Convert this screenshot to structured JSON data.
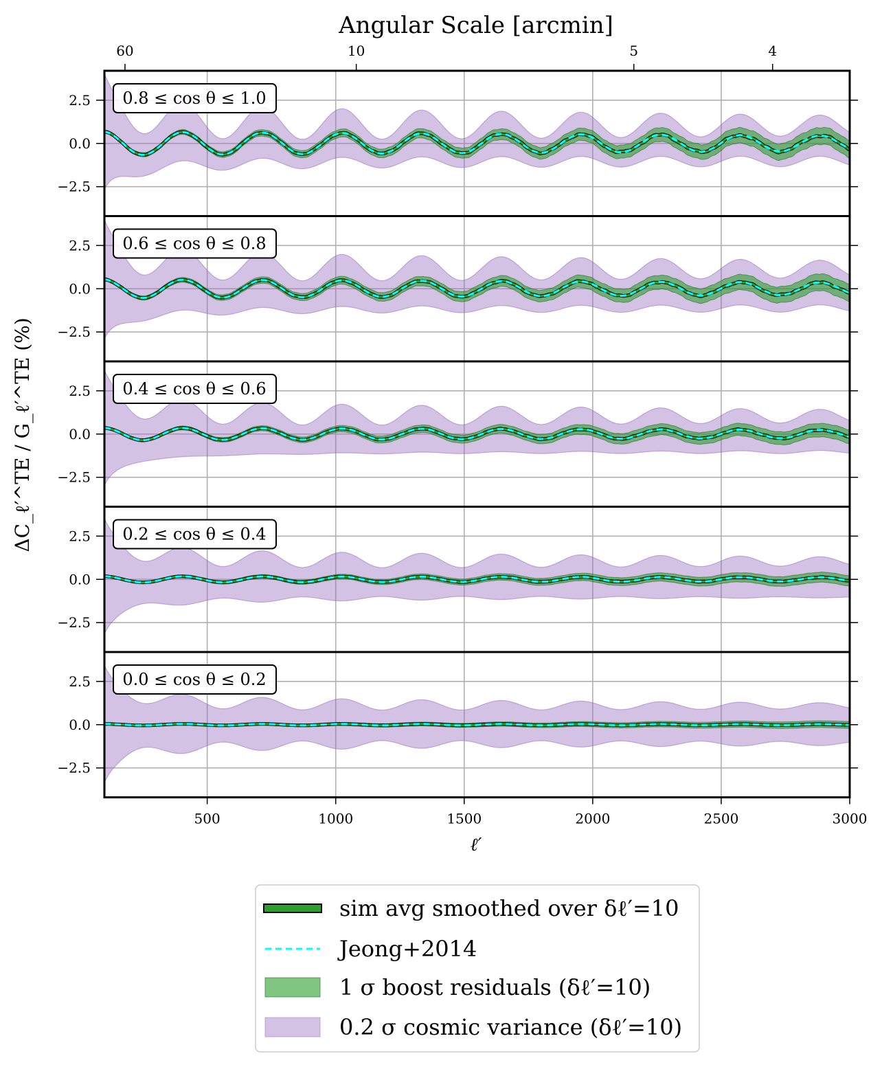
{
  "chart_data": {
    "type": "line",
    "top_axis_title": "Angular Scale [arcmin]",
    "top_ticks": [
      {
        "label": "60",
        "ell": 180
      },
      {
        "label": "10",
        "ell": 1080
      },
      {
        "label": "5",
        "ell": 2160
      },
      {
        "label": "4",
        "ell": 2700
      }
    ],
    "xlabel": "ℓ′",
    "ylabel": "ΔC_ℓ′^TE / G_ℓ′^TE (%)",
    "xlim": [
      100,
      3000
    ],
    "ylim": [
      -4.2,
      4.2
    ],
    "x_ticks": [
      500,
      1000,
      1500,
      2000,
      2500,
      3000
    ],
    "y_ticks": [
      -2.5,
      0.0,
      2.5
    ],
    "y_tick_labels": [
      "−2.5",
      "0.0",
      "2.5"
    ],
    "oscillation_period": 310,
    "panels": [
      {
        "label": "0.8 ≤ cos θ ≤ 1.0",
        "signal_amp": 0.75,
        "sigma_boost": 0.25,
        "cv_band_end": 1.0
      },
      {
        "label": "0.6 ≤ cos θ ≤ 0.8",
        "signal_amp": 0.6,
        "sigma_boost": 0.25,
        "cv_band_end": 1.1
      },
      {
        "label": "0.4 ≤ cos θ ≤ 0.6",
        "signal_amp": 0.4,
        "sigma_boost": 0.2,
        "cv_band_end": 1.0
      },
      {
        "label": "0.2 ≤ cos θ ≤ 0.4",
        "signal_amp": 0.2,
        "sigma_boost": 0.15,
        "cv_band_end": 1.0
      },
      {
        "label": "0.0 ≤ cos θ ≤ 0.2",
        "signal_amp": 0.05,
        "sigma_boost": 0.1,
        "cv_band_end": 1.05
      }
    ],
    "legend": [
      {
        "label": "sim avg smoothed over δℓ′=10",
        "kind": "line-green"
      },
      {
        "label": "Jeong+2014",
        "kind": "dashed-cyan"
      },
      {
        "label": "1 σ boost residuals (δℓ′=10)",
        "kind": "band-green"
      },
      {
        "label": "0.2 σ cosmic variance (δℓ′=10)",
        "kind": "band-purple"
      }
    ],
    "colors": {
      "sim": "#2ca02c",
      "jeong": "#00ffff",
      "boost_band": "#2ca02c",
      "cv_band": "#9467bd"
    }
  }
}
